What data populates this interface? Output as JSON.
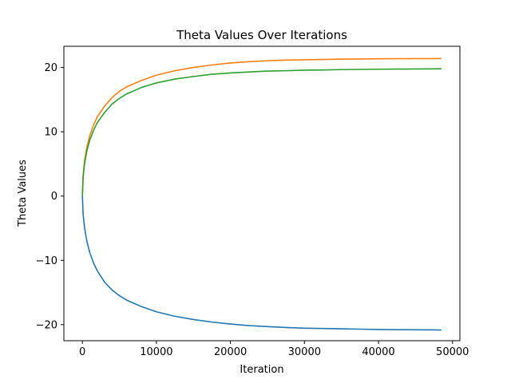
{
  "chart_data": {
    "type": "line",
    "title": "Theta Values Over Iterations",
    "xlabel": "Iteration",
    "ylabel": "Theta Values",
    "xlim": [
      -2500,
      51000
    ],
    "ylim": [
      -22.5,
      23.3
    ],
    "xticks": [
      0,
      10000,
      20000,
      30000,
      40000,
      50000
    ],
    "xtick_labels": [
      "0",
      "10000",
      "20000",
      "30000",
      "40000",
      "50000"
    ],
    "yticks": [
      -20,
      -10,
      0,
      10,
      20
    ],
    "ytick_labels": [
      "−20",
      "−10",
      "0",
      "10",
      "20"
    ],
    "grid": false,
    "legend": "none",
    "x": [
      0,
      100,
      300,
      600,
      1000,
      1500,
      2000,
      3000,
      4000,
      5000,
      6000,
      8000,
      10000,
      12500,
      15000,
      17500,
      20000,
      22500,
      25000,
      27500,
      30000,
      32500,
      35000,
      37500,
      40000,
      42500,
      45000,
      47500,
      48500
    ],
    "series": [
      {
        "color": "#1f77b4",
        "values": [
          0,
          -2.8,
          -5.0,
          -7.0,
          -8.8,
          -10.4,
          -11.6,
          -13.4,
          -14.6,
          -15.5,
          -16.2,
          -17.2,
          -18.0,
          -18.7,
          -19.2,
          -19.6,
          -19.9,
          -20.15,
          -20.3,
          -20.45,
          -20.55,
          -20.6,
          -20.65,
          -20.7,
          -20.75,
          -20.78,
          -20.8,
          -20.82,
          -20.83
        ]
      },
      {
        "color": "#ff7f0e",
        "values": [
          0,
          3.2,
          5.6,
          7.6,
          9.4,
          11.0,
          12.3,
          14.0,
          15.3,
          16.3,
          17.0,
          18.0,
          18.8,
          19.5,
          20.0,
          20.4,
          20.7,
          20.9,
          21.05,
          21.15,
          21.2,
          21.25,
          21.3,
          21.32,
          21.35,
          21.37,
          21.38,
          21.39,
          21.4
        ]
      },
      {
        "color": "#2ca02c",
        "values": [
          0,
          2.9,
          5.1,
          7.0,
          8.7,
          10.2,
          11.4,
          13.0,
          14.3,
          15.2,
          15.9,
          16.9,
          17.6,
          18.2,
          18.6,
          18.95,
          19.15,
          19.3,
          19.45,
          19.5,
          19.58,
          19.62,
          19.67,
          19.7,
          19.73,
          19.75,
          19.77,
          19.78,
          19.8
        ]
      }
    ]
  }
}
